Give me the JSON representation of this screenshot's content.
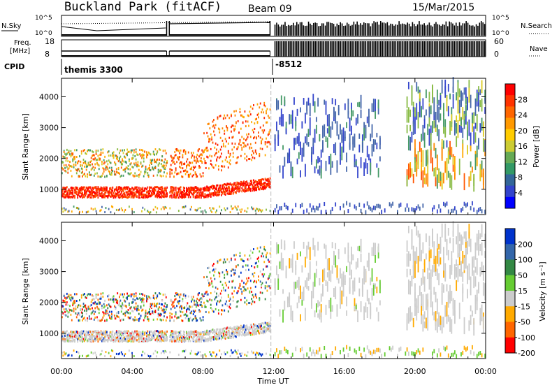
{
  "header": {
    "title": "Buckland Park (fitACF)",
    "beam": "Beam 09",
    "date": "15/Mar/2015"
  },
  "params": {
    "nsky_label": "N.Sky",
    "nsearch_label": "N.Search",
    "nsky_ticks": [
      "10^5",
      "10^0"
    ],
    "freq_label_1": "Freq.",
    "freq_label_2": "[MHz]",
    "freq_ticks": [
      "18",
      "8"
    ],
    "nave_label": "Nave",
    "nave_ticks": [
      "60",
      "0"
    ],
    "cpid_label": "CPID",
    "cpid_values": [
      "themis 3300",
      "-8512"
    ]
  },
  "chart_data": [
    {
      "type": "heatmap",
      "name": "power",
      "ylabel": "Slant Range [km]",
      "yticks": [
        1000,
        2000,
        3000,
        4000
      ],
      "ylim": [
        180,
        4600
      ],
      "xlim_hours": [
        0,
        24
      ],
      "colorbar": {
        "label": "Power [dB]",
        "ticks": [
          "28",
          "24",
          "20",
          "16",
          "12",
          "8",
          "4"
        ],
        "colors": [
          "#ff0000",
          "#ff3300",
          "#ff6600",
          "#ff9900",
          "#ffcc00",
          "#cccc33",
          "#66aa55",
          "#339966",
          "#336699",
          "#3344cc",
          "#0000ff"
        ]
      }
    },
    {
      "type": "heatmap",
      "name": "velocity",
      "ylabel": "Slant Range [km]",
      "yticks": [
        1000,
        2000,
        3000,
        4000
      ],
      "ylim": [
        180,
        4600
      ],
      "xlim_hours": [
        0,
        24
      ],
      "xlabel": "Time UT",
      "xticks": [
        "00:00",
        "04:00",
        "08:00",
        "12:00",
        "16:00",
        "20:00",
        "00:00"
      ],
      "colorbar": {
        "label": "Velocity [m s⁻¹]",
        "ticks": [
          "200",
          "100",
          "50",
          "15",
          "-15",
          "-50",
          "-100",
          "-200"
        ],
        "colors": [
          "#0033cc",
          "#3366aa",
          "#338844",
          "#66cc33",
          "#cccccc",
          "#ffaa00",
          "#ff6600",
          "#ff0000"
        ]
      }
    }
  ]
}
